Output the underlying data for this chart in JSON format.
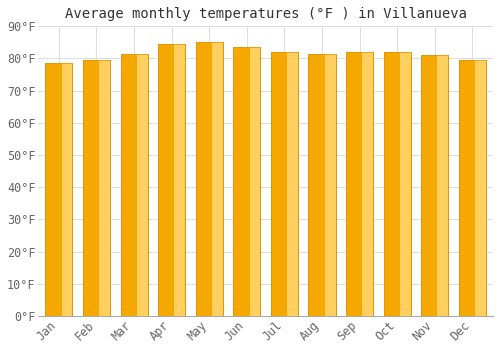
{
  "title": "Average monthly temperatures (°F ) in Villanueva",
  "months": [
    "Jan",
    "Feb",
    "Mar",
    "Apr",
    "May",
    "Jun",
    "Jul",
    "Aug",
    "Sep",
    "Oct",
    "Nov",
    "Dec"
  ],
  "values": [
    78.5,
    79.5,
    81.5,
    84.5,
    85.0,
    83.5,
    82.0,
    81.5,
    82.0,
    82.0,
    81.0,
    79.5
  ],
  "bar_color_left": "#F5A800",
  "bar_color_right": "#FFD060",
  "bar_edge_color": "#E09000",
  "background_color": "#FFFFFF",
  "plot_bg_color": "#FFFFFF",
  "grid_color": "#DDDDDD",
  "ylim": [
    0,
    90
  ],
  "yticks": [
    0,
    10,
    20,
    30,
    40,
    50,
    60,
    70,
    80,
    90
  ],
  "ytick_labels": [
    "0°F",
    "10°F",
    "20°F",
    "30°F",
    "40°F",
    "50°F",
    "60°F",
    "70°F",
    "80°F",
    "90°F"
  ],
  "title_fontsize": 10,
  "tick_fontsize": 8.5,
  "font_family": "monospace"
}
